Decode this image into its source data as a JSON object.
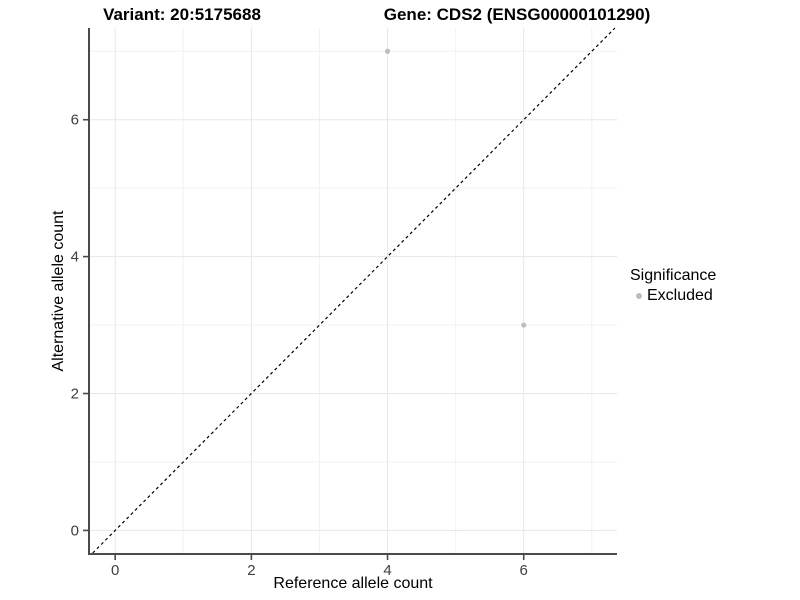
{
  "chart_data": {
    "type": "scatter",
    "title_left": "Variant: 20:5175688",
    "title_right": "Gene: CDS2 (ENSG00000101290)",
    "xlabel": "Reference allele count",
    "ylabel": "Alternative allele count",
    "xlim": [
      -0.37,
      7.37
    ],
    "ylim": [
      -0.33,
      7.34
    ],
    "xticks": [
      0,
      2,
      4,
      6
    ],
    "yticks": [
      0,
      2,
      4,
      6
    ],
    "xminor": [
      1,
      3,
      5,
      7
    ],
    "yminor": [
      1,
      3,
      5,
      7
    ],
    "grid": "major and minor gridlines, white panel background",
    "points": [
      {
        "x": 4,
        "y": 7,
        "group": "Excluded"
      },
      {
        "x": 6,
        "y": 3,
        "group": "Excluded"
      }
    ],
    "identity_line": {
      "slope": 1,
      "intercept": 0,
      "style": "dashed",
      "color": "#000000"
    },
    "legend": {
      "title": "Significance",
      "position": "right",
      "items": [
        {
          "label": "Excluded",
          "color": "#bdbdbd"
        }
      ]
    },
    "colors": {
      "point": "#bdbdbd",
      "grid_major": "#e7e7e7",
      "grid_minor": "#f2f2f2",
      "axis_line": "#4a4a4a",
      "tick_label": "#404040",
      "title": "#000000"
    }
  }
}
